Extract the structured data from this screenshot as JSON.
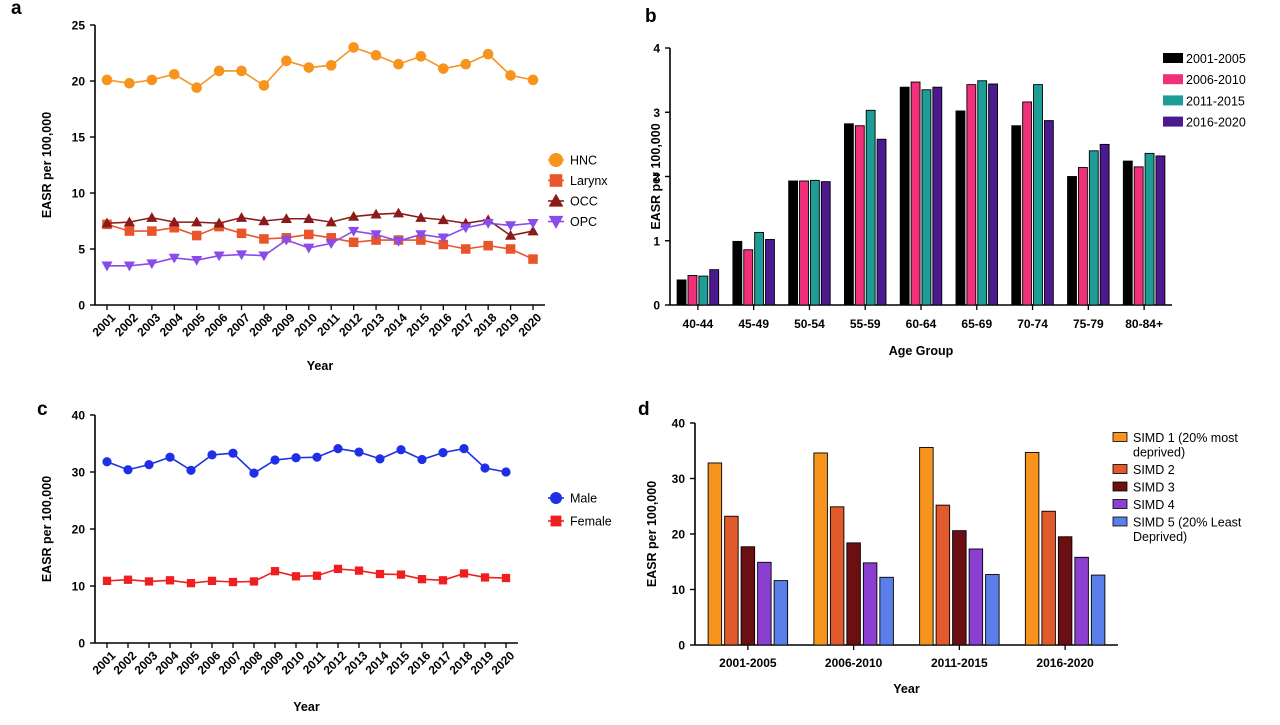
{
  "chart_data": [
    {
      "id": "a",
      "panel_label": "a",
      "type": "line",
      "title": "",
      "xlabel": "Year",
      "ylabel": "EASR per 100,000",
      "ylim": [
        0,
        25
      ],
      "yticks": [
        0,
        5,
        10,
        15,
        20,
        25
      ],
      "grid": false,
      "legend_position": "right",
      "categories": [
        "2001",
        "2002",
        "2003",
        "2004",
        "2005",
        "2006",
        "2007",
        "2008",
        "2009",
        "2010",
        "2011",
        "2012",
        "2013",
        "2014",
        "2015",
        "2016",
        "2017",
        "2018",
        "2019",
        "2020"
      ],
      "series": [
        {
          "name": "HNC",
          "color": "#F7941D",
          "marker": "circle",
          "values": [
            20.1,
            19.8,
            20.1,
            20.6,
            19.4,
            20.9,
            20.9,
            19.6,
            21.8,
            21.2,
            21.4,
            23.0,
            22.3,
            21.5,
            22.2,
            21.1,
            21.5,
            22.4,
            20.5,
            20.1
          ]
        },
        {
          "name": "Larynx",
          "color": "#E8552B",
          "marker": "square",
          "values": [
            7.2,
            6.6,
            6.6,
            6.9,
            6.2,
            7.0,
            6.4,
            5.9,
            6.0,
            6.3,
            6.0,
            5.6,
            5.8,
            5.8,
            5.8,
            5.4,
            5.0,
            5.3,
            5.0,
            4.1
          ]
        },
        {
          "name": "OCC",
          "color": "#8B1A1A",
          "marker": "triangle-up",
          "values": [
            7.3,
            7.4,
            7.8,
            7.4,
            7.4,
            7.3,
            7.8,
            7.5,
            7.7,
            7.7,
            7.4,
            7.9,
            8.1,
            8.2,
            7.8,
            7.6,
            7.3,
            7.6,
            6.2,
            6.6
          ]
        },
        {
          "name": "OPC",
          "color": "#8A4BEB",
          "marker": "triangle-down",
          "values": [
            3.5,
            3.5,
            3.7,
            4.2,
            4.0,
            4.4,
            4.5,
            4.4,
            5.8,
            5.1,
            5.5,
            6.6,
            6.3,
            5.7,
            6.3,
            6.0,
            6.9,
            7.3,
            7.1,
            7.3
          ]
        }
      ]
    },
    {
      "id": "b",
      "panel_label": "b",
      "type": "bar",
      "title": "",
      "xlabel": "Age Group",
      "ylabel": "EASR per 100,000",
      "ylim": [
        0,
        4
      ],
      "yticks": [
        0,
        1,
        2,
        3,
        4
      ],
      "grid": false,
      "legend_position": "top-right",
      "categories": [
        "40-44",
        "45-49",
        "50-54",
        "55-59",
        "60-64",
        "65-69",
        "70-74",
        "75-79",
        "80-84+"
      ],
      "series": [
        {
          "name": "2001-2005",
          "color": "#000000",
          "values": [
            0.39,
            0.99,
            1.93,
            2.82,
            3.39,
            3.02,
            2.79,
            2.0,
            2.24
          ]
        },
        {
          "name": "2006-2010",
          "color": "#F0307A",
          "values": [
            0.46,
            0.86,
            1.93,
            2.79,
            3.47,
            3.43,
            3.16,
            2.14,
            2.15
          ]
        },
        {
          "name": "2011-2015",
          "color": "#1E9C96",
          "values": [
            0.45,
            1.13,
            1.94,
            3.03,
            3.35,
            3.49,
            3.43,
            2.4,
            2.36
          ]
        },
        {
          "name": "2016-2020",
          "color": "#4B1A8F",
          "values": [
            0.55,
            1.02,
            1.92,
            2.58,
            3.39,
            3.44,
            2.87,
            2.5,
            2.32
          ]
        }
      ]
    },
    {
      "id": "c",
      "panel_label": "c",
      "type": "line",
      "title": "",
      "xlabel": "Year",
      "ylabel": "EASR per 100,000",
      "ylim": [
        0,
        40
      ],
      "yticks": [
        0,
        10,
        20,
        30,
        40
      ],
      "grid": false,
      "legend_position": "right",
      "categories": [
        "2001",
        "2002",
        "2003",
        "2004",
        "2005",
        "2006",
        "2007",
        "2008",
        "2009",
        "2010",
        "2011",
        "2012",
        "2013",
        "2014",
        "2015",
        "2016",
        "2017",
        "2018",
        "2019",
        "2020"
      ],
      "series": [
        {
          "name": "Male",
          "color": "#1F2FE6",
          "marker": "circle",
          "values": [
            31.8,
            30.4,
            31.3,
            32.6,
            30.3,
            33.0,
            33.3,
            29.8,
            32.1,
            32.5,
            32.6,
            34.1,
            33.5,
            32.3,
            33.9,
            32.2,
            33.4,
            34.1,
            30.7,
            30.0
          ]
        },
        {
          "name": "Female",
          "color": "#F01F1F",
          "marker": "square",
          "values": [
            10.9,
            11.1,
            10.8,
            11.0,
            10.5,
            10.9,
            10.7,
            10.8,
            12.6,
            11.7,
            11.8,
            13.0,
            12.7,
            12.1,
            12.0,
            11.2,
            11.0,
            12.2,
            11.5,
            11.4
          ]
        }
      ]
    },
    {
      "id": "d",
      "panel_label": "d",
      "type": "bar",
      "title": "",
      "xlabel": "Year",
      "ylabel": "EASR per 100,000",
      "ylim": [
        0,
        40
      ],
      "yticks": [
        0,
        10,
        20,
        30,
        40
      ],
      "grid": false,
      "legend_position": "top-right",
      "categories": [
        "2001-2005",
        "2006-2010",
        "2011-2015",
        "2016-2020"
      ],
      "series": [
        {
          "name": "SIMD 1 (20% most deprived)",
          "legend_lines": [
            "SIMD 1 (20% most",
            "deprived)"
          ],
          "color": "#F7941D",
          "values": [
            32.8,
            34.6,
            35.6,
            34.7
          ]
        },
        {
          "name": "SIMD 2",
          "legend_lines": [
            "SIMD 2"
          ],
          "color": "#E05A2B",
          "values": [
            23.2,
            24.9,
            25.2,
            24.1
          ]
        },
        {
          "name": "SIMD 3",
          "legend_lines": [
            "SIMD 3"
          ],
          "color": "#6B0F12",
          "values": [
            17.7,
            18.4,
            20.6,
            19.5
          ]
        },
        {
          "name": "SIMD 4",
          "legend_lines": [
            "SIMD 4"
          ],
          "color": "#8B3FD0",
          "values": [
            14.9,
            14.8,
            17.3,
            15.8
          ]
        },
        {
          "name": "SIMD 5 (20% Least Deprived)",
          "legend_lines": [
            "SIMD 5 (20% Least",
            "Deprived)"
          ],
          "color": "#5B7FE8",
          "values": [
            11.6,
            12.2,
            12.7,
            12.6
          ]
        }
      ]
    }
  ]
}
